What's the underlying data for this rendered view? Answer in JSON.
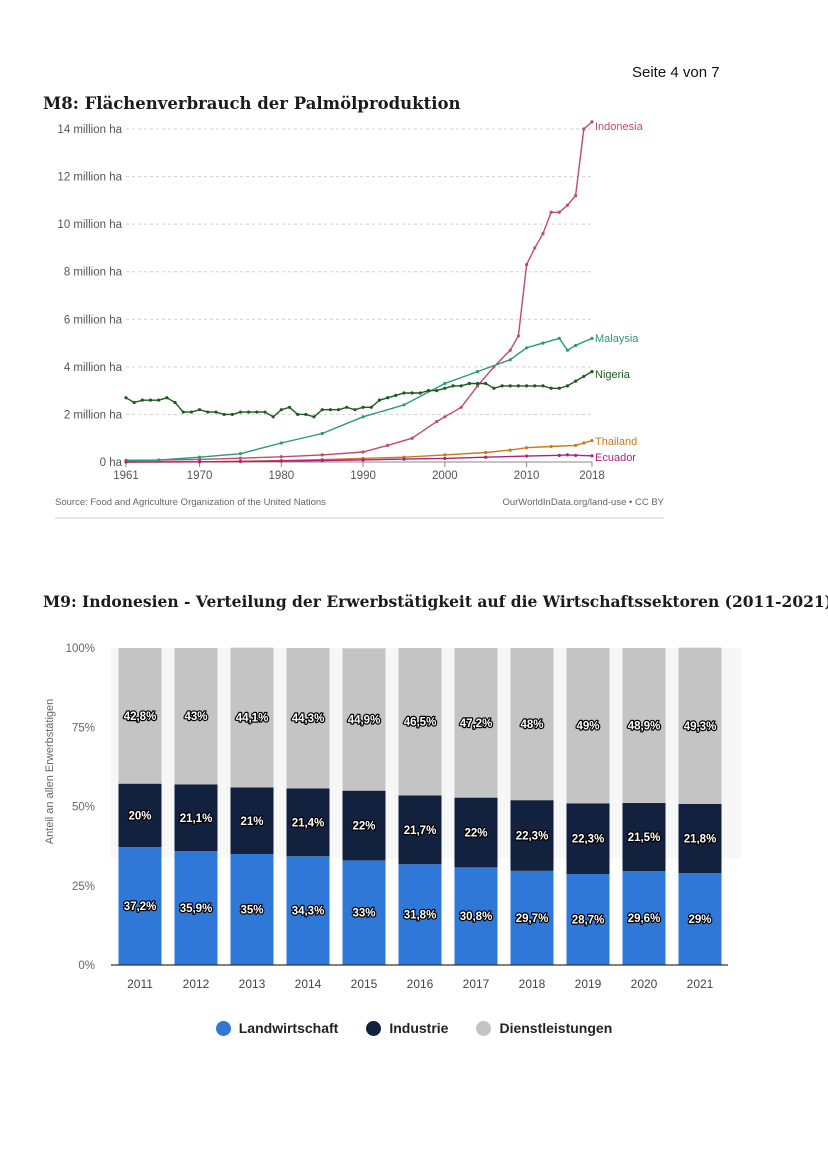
{
  "page": {
    "number_label": "Seite 4 von 7"
  },
  "m8": {
    "title": "M8: Flächenverbrauch der Palmölproduktion",
    "source": "Source: Food and Agriculture Organization of the United Nations",
    "credit": "OurWorldInData.org/land-use • CC BY"
  },
  "m9": {
    "title": "M9: Indonesien - Verteilung der Erwerbstätigkeit auf die Wirtschaftssektoren (2011-2021)"
  },
  "chart_data": [
    {
      "type": "line",
      "title": "",
      "ylabel": "",
      "xlim": [
        1961,
        2018
      ],
      "ylim": [
        0,
        14000000
      ],
      "y_ticks": [
        0,
        2000000,
        4000000,
        6000000,
        8000000,
        10000000,
        12000000,
        14000000
      ],
      "y_tick_labels": [
        "0 ha",
        "2 million ha",
        "4 million ha",
        "6 million ha",
        "8 million ha",
        "10 million ha",
        "12 million ha",
        "14 million ha"
      ],
      "x_ticks": [
        1961,
        1970,
        1980,
        1990,
        2000,
        2010,
        2018
      ],
      "x_tick_labels": [
        "1961",
        "1970",
        "1980",
        "1990",
        "2000",
        "2010",
        "2018"
      ],
      "grid": "horizontal dotted",
      "series": [
        {
          "name": "Indonesia",
          "color": "#c34a68",
          "points": [
            [
              1961,
              70000
            ],
            [
              1965,
              80000
            ],
            [
              1970,
              110000
            ],
            [
              1975,
              160000
            ],
            [
              1980,
              220000
            ],
            [
              1985,
              300000
            ],
            [
              1990,
              420000
            ],
            [
              1993,
              700000
            ],
            [
              1996,
              1000000
            ],
            [
              1999,
              1700000
            ],
            [
              2000,
              1900000
            ],
            [
              2002,
              2300000
            ],
            [
              2004,
              3200000
            ],
            [
              2006,
              4000000
            ],
            [
              2008,
              4700000
            ],
            [
              2009,
              5300000
            ],
            [
              2010,
              8300000
            ],
            [
              2011,
              9000000
            ],
            [
              2012,
              9600000
            ],
            [
              2013,
              10500000
            ],
            [
              2014,
              10500000
            ],
            [
              2015,
              10800000
            ],
            [
              2016,
              11200000
            ],
            [
              2017,
              14000000
            ],
            [
              2018,
              14300000
            ]
          ]
        },
        {
          "name": "Malaysia",
          "color": "#2a9a72",
          "points": [
            [
              1961,
              60000
            ],
            [
              1965,
              80000
            ],
            [
              1970,
              200000
            ],
            [
              1975,
              350000
            ],
            [
              1980,
              800000
            ],
            [
              1985,
              1200000
            ],
            [
              1990,
              1900000
            ],
            [
              1995,
              2400000
            ],
            [
              2000,
              3300000
            ],
            [
              2004,
              3800000
            ],
            [
              2008,
              4300000
            ],
            [
              2010,
              4800000
            ],
            [
              2012,
              5000000
            ],
            [
              2014,
              5200000
            ],
            [
              2015,
              4700000
            ],
            [
              2016,
              4900000
            ],
            [
              2018,
              5200000
            ]
          ]
        },
        {
          "name": "Nigeria",
          "color": "#1e5a1e",
          "points": [
            [
              1961,
              2700000
            ],
            [
              1962,
              2500000
            ],
            [
              1963,
              2600000
            ],
            [
              1964,
              2600000
            ],
            [
              1965,
              2600000
            ],
            [
              1966,
              2700000
            ],
            [
              1967,
              2500000
            ],
            [
              1968,
              2100000
            ],
            [
              1969,
              2100000
            ],
            [
              1970,
              2200000
            ],
            [
              1971,
              2100000
            ],
            [
              1972,
              2100000
            ],
            [
              1973,
              2000000
            ],
            [
              1974,
              2000000
            ],
            [
              1975,
              2100000
            ],
            [
              1976,
              2100000
            ],
            [
              1977,
              2100000
            ],
            [
              1978,
              2100000
            ],
            [
              1979,
              1900000
            ],
            [
              1980,
              2200000
            ],
            [
              1981,
              2300000
            ],
            [
              1982,
              2000000
            ],
            [
              1983,
              2000000
            ],
            [
              1984,
              1900000
            ],
            [
              1985,
              2200000
            ],
            [
              1986,
              2200000
            ],
            [
              1987,
              2200000
            ],
            [
              1988,
              2300000
            ],
            [
              1989,
              2200000
            ],
            [
              1990,
              2300000
            ],
            [
              1991,
              2300000
            ],
            [
              1992,
              2600000
            ],
            [
              1993,
              2700000
            ],
            [
              1994,
              2800000
            ],
            [
              1995,
              2900000
            ],
            [
              1996,
              2900000
            ],
            [
              1997,
              2900000
            ],
            [
              1998,
              3000000
            ],
            [
              1999,
              3000000
            ],
            [
              2000,
              3100000
            ],
            [
              2001,
              3200000
            ],
            [
              2002,
              3200000
            ],
            [
              2003,
              3300000
            ],
            [
              2004,
              3300000
            ],
            [
              2005,
              3300000
            ],
            [
              2006,
              3100000
            ],
            [
              2007,
              3200000
            ],
            [
              2008,
              3200000
            ],
            [
              2009,
              3200000
            ],
            [
              2010,
              3200000
            ],
            [
              2011,
              3200000
            ],
            [
              2012,
              3200000
            ],
            [
              2013,
              3100000
            ],
            [
              2014,
              3100000
            ],
            [
              2015,
              3200000
            ],
            [
              2016,
              3400000
            ],
            [
              2017,
              3600000
            ],
            [
              2018,
              3800000
            ]
          ]
        },
        {
          "name": "Thailand",
          "color": "#c97a1a",
          "points": [
            [
              1961,
              0
            ],
            [
              1970,
              10000
            ],
            [
              1975,
              30000
            ],
            [
              1980,
              60000
            ],
            [
              1985,
              100000
            ],
            [
              1990,
              150000
            ],
            [
              1995,
              200000
            ],
            [
              2000,
              300000
            ],
            [
              2005,
              400000
            ],
            [
              2008,
              500000
            ],
            [
              2010,
              600000
            ],
            [
              2013,
              650000
            ],
            [
              2016,
              700000
            ],
            [
              2017,
              800000
            ],
            [
              2018,
              900000
            ]
          ]
        },
        {
          "name": "Ecuador",
          "color": "#b02080",
          "points": [
            [
              1961,
              0
            ],
            [
              1970,
              10000
            ],
            [
              1975,
              20000
            ],
            [
              1980,
              40000
            ],
            [
              1985,
              60000
            ],
            [
              1990,
              90000
            ],
            [
              1995,
              120000
            ],
            [
              2000,
              150000
            ],
            [
              2005,
              200000
            ],
            [
              2010,
              250000
            ],
            [
              2014,
              280000
            ],
            [
              2015,
              300000
            ],
            [
              2016,
              280000
            ],
            [
              2018,
              260000
            ]
          ]
        }
      ]
    },
    {
      "type": "bar",
      "stacked": true,
      "title": "",
      "xlabel": "",
      "ylabel": "Anteil an allen Erwerbstätigen",
      "ylim": [
        0,
        100
      ],
      "y_ticks": [
        0,
        25,
        50,
        75,
        100
      ],
      "y_tick_labels": [
        "0%",
        "25%",
        "50%",
        "75%",
        "100%"
      ],
      "categories": [
        "2011",
        "2012",
        "2013",
        "2014",
        "2015",
        "2016",
        "2017",
        "2018",
        "2019",
        "2020",
        "2021"
      ],
      "legend": "bottom",
      "series": [
        {
          "name": "Landwirtschaft",
          "color": "#2f78d8",
          "values": [
            37.2,
            35.9,
            35,
            34.3,
            33,
            31.8,
            30.8,
            29.7,
            28.7,
            29.6,
            29
          ],
          "labels": [
            "37,2%",
            "35,9%",
            "35%",
            "34,3%",
            "33%",
            "31,8%",
            "30,8%",
            "29,7%",
            "28,7%",
            "29,6%",
            "29%"
          ]
        },
        {
          "name": "Industrie",
          "color": "#12213d",
          "values": [
            20,
            21.1,
            21,
            21.4,
            22,
            21.7,
            22,
            22.3,
            22.3,
            21.5,
            21.8
          ],
          "labels": [
            "20%",
            "21,1%",
            "21%",
            "21,4%",
            "22%",
            "21,7%",
            "22%",
            "22,3%",
            "22,3%",
            "21,5%",
            "21,8%"
          ]
        },
        {
          "name": "Dienstleistungen",
          "color": "#c4c4c4",
          "values": [
            42.8,
            43,
            44.1,
            44.3,
            44.9,
            46.5,
            47.2,
            48,
            49,
            48.9,
            49.3
          ],
          "labels": [
            "42,8%",
            "43%",
            "44,1%",
            "44,3%",
            "44,9%",
            "46,5%",
            "47,2%",
            "48%",
            "49%",
            "48,9%",
            "49,3%"
          ]
        }
      ]
    }
  ]
}
